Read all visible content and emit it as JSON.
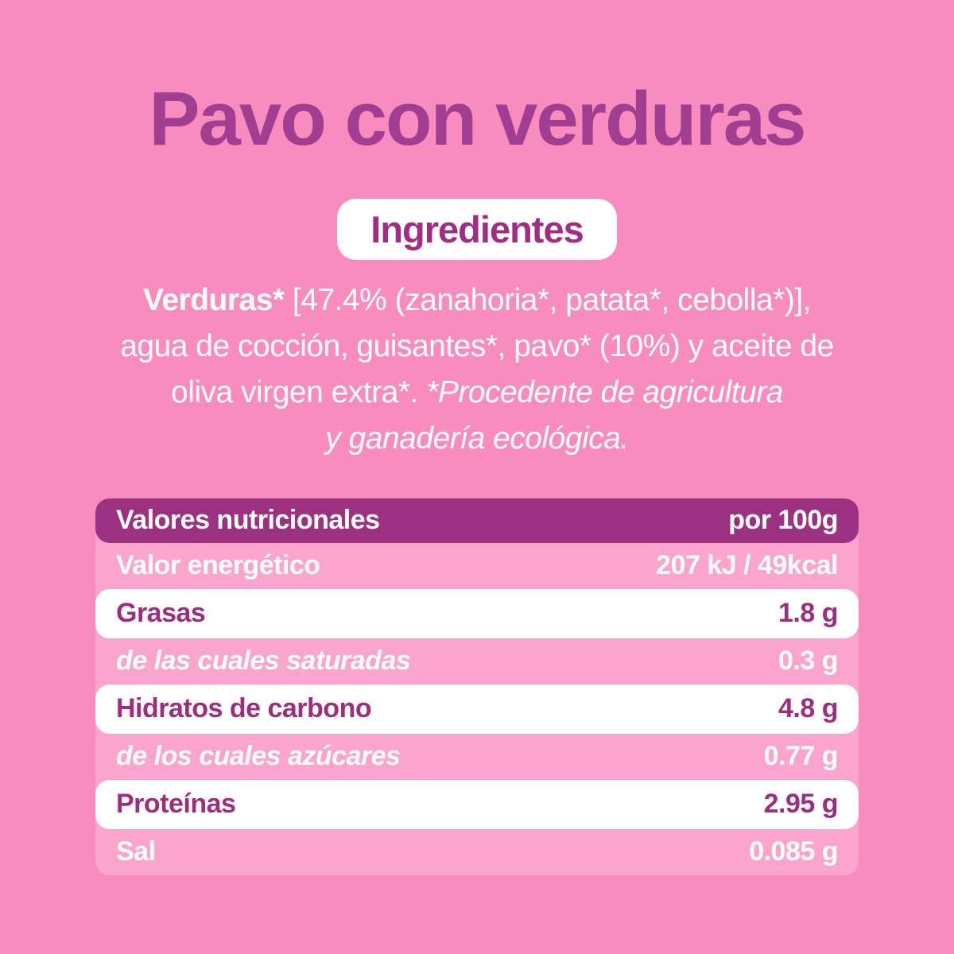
{
  "page": {
    "title": "Pavo con verduras",
    "badge": "Ingredientes"
  },
  "ingredients": {
    "line1_bold": "Verduras*",
    "line1_rest": " [47.4% (zanahoria*, patata*, cebolla*)],",
    "line2": "agua de cocción, guisantes*, pavo* (10%) y aceite de",
    "line3_regular": "oliva virgen extra*. ",
    "line3_italic": "*Procedente de agricultura",
    "line4_italic": "y ganadería ecológica."
  },
  "nutrition_table": {
    "header": {
      "label": "Valores nutricionales",
      "value": "por 100g"
    },
    "rows": [
      {
        "label": "Valor energético",
        "value": "207 kJ / 49kcal"
      },
      {
        "label": "Grasas",
        "value": "1.8 g"
      },
      {
        "label": "de las cuales saturadas",
        "value": "0.3 g"
      },
      {
        "label": "Hidratos de carbono",
        "value": "4.8 g"
      },
      {
        "label": "de los cuales azúcares",
        "value": "0.77 g"
      },
      {
        "label": "Proteínas",
        "value": "2.95 g"
      },
      {
        "label": "Sal",
        "value": "0.085 g"
      }
    ]
  },
  "colors": {
    "page_background": "#f98cbe",
    "table_pink": "#fba4cd",
    "header_bar": "#9c3181",
    "title_purple": "#a23e92",
    "label_purple": "#9c2d7f",
    "white": "#ffffff"
  }
}
